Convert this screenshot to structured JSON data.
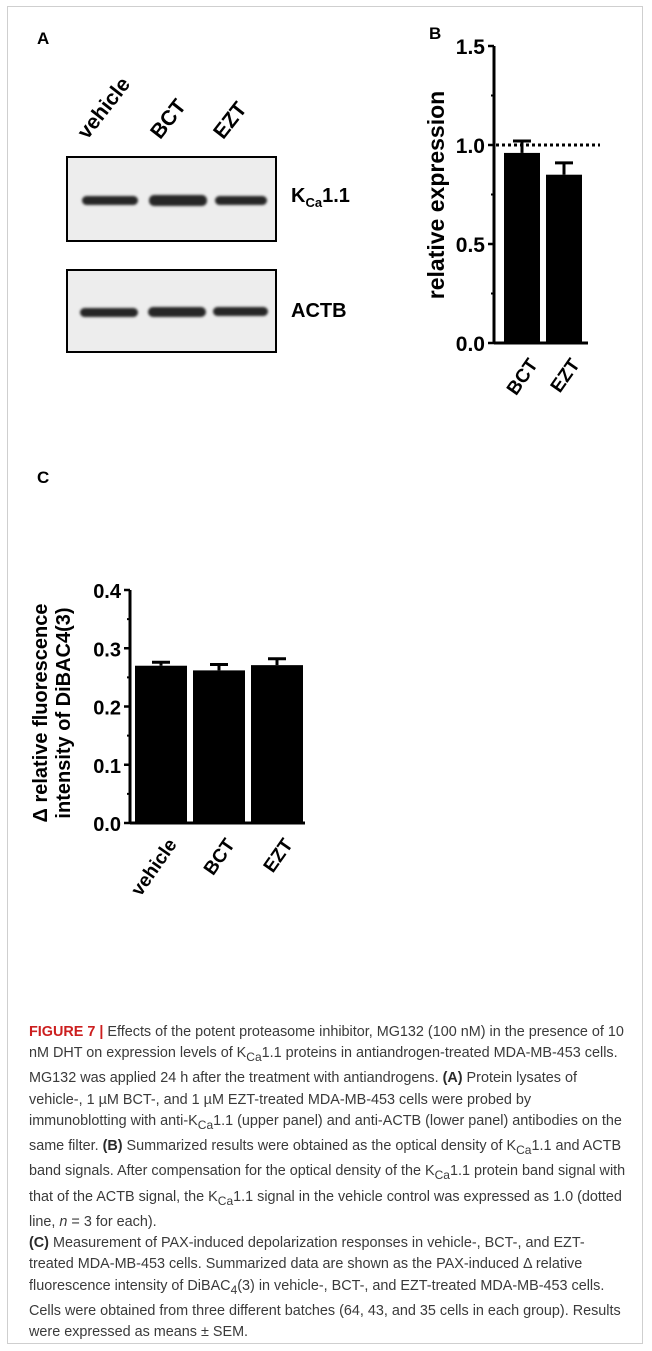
{
  "panelA": {
    "letter": "A",
    "lanes": [
      "vehicle",
      "BCT",
      "EZT"
    ],
    "blot_top_label": "K",
    "blot_top_sub": "Ca",
    "blot_top_suffix": "1.1",
    "blot_bottom_label": "ACTB"
  },
  "panelB": {
    "letter": "B"
  },
  "panelC": {
    "letter": "C"
  },
  "chart_data": [
    {
      "type": "bar",
      "categories": [
        "BCT",
        "EZT"
      ],
      "values": [
        0.96,
        0.85
      ],
      "errors": [
        0.06,
        0.06
      ],
      "ylabel": "relative expression",
      "ylim": [
        0,
        1.5
      ],
      "yticks": [
        "0.0",
        "0.5",
        "1.0",
        "1.5"
      ],
      "reference_line": 1.0,
      "bar_color": "#000000"
    },
    {
      "type": "bar",
      "categories": [
        "vehicle",
        "BCT",
        "EZT"
      ],
      "values": [
        0.27,
        0.262,
        0.271
      ],
      "errors": [
        0.006,
        0.01,
        0.011
      ],
      "ylabel_line1": "Δ relative fluorescence",
      "ylabel_line2": "intensity of DiBAC4(3)",
      "ylim": [
        0,
        0.4
      ],
      "yticks": [
        "0.0",
        "0.1",
        "0.2",
        "0.3",
        "0.4"
      ],
      "bar_color": "#000000"
    }
  ],
  "caption": {
    "lead": "FIGURE 7 |",
    "text1": " Effects of the potent proteasome inhibitor, MG132 (100 nM) in the presence of 10 nM DHT on expression levels of K",
    "sub1": "Ca",
    "text2": "1.1 proteins in antiandrogen-treated MDA-MB-453 cells. MG132 was applied 24 h after the treatment with antiandrogens. ",
    "labelA": "(A)",
    "text3": " Protein lysates of vehicle-, 1 µM BCT-, and 1 µM EZT-treated MDA-MB-453 cells were probed by immunoblotting with anti-K",
    "sub2": "Ca",
    "text4": "1.1 (upper panel) and anti-ACTB (lower panel) antibodies on the same filter. ",
    "labelB": "(B)",
    "text5": " Summarized results were obtained as the optical density of K",
    "sub3": "Ca",
    "text6": "1.1 and ACTB band signals. After compensation for the optical density of the K",
    "sub4": "Ca",
    "text7": "1.1 protein band signal with that of the ACTB signal, the K",
    "sub5": "Ca",
    "text8": "1.1 signal in the vehicle control was expressed as 1.0 (dotted line, ",
    "n_italic": "n",
    "text9": " = 3 for each).",
    "labelC": "(C)",
    "text10": " Measurement of PAX-induced depolarization responses in vehicle-, BCT-, and EZT-treated MDA-MB-453 cells. Summarized data are shown as the PAX-induced Δ relative fluorescence intensity of DiBAC",
    "sub6": "4",
    "text11": "(3) in vehicle-, BCT-, and EZT-treated MDA-MB-453 cells. Cells were obtained from three different batches (64, 43, and 35 cells in each group). Results were expressed as means ± SEM."
  }
}
